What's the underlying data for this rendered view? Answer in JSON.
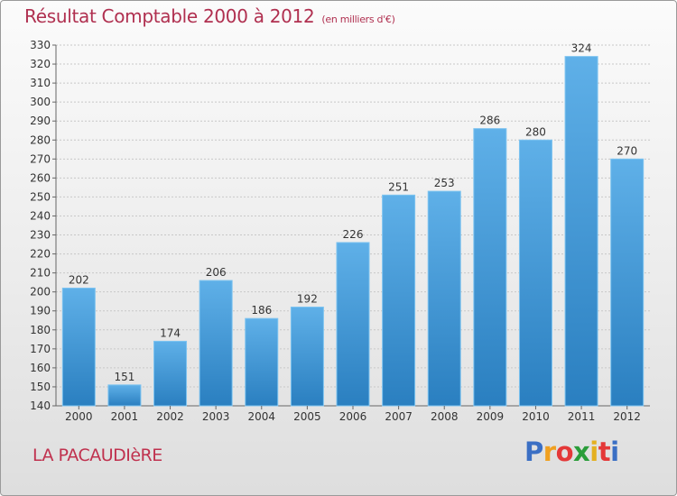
{
  "header": {
    "title": "Résultat Comptable 2000 à 2012",
    "subtitle": "(en milliers d'€)"
  },
  "footer": {
    "commune": "LA PACAUDIèRE",
    "logo_letters": [
      "P",
      "r",
      "o",
      "x",
      "i",
      "t",
      "i"
    ],
    "logo_colors": [
      "#3b6fc4",
      "#f0a020",
      "#e43838",
      "#2a9d3a",
      "#e4b020",
      "#e43838",
      "#3b6fc4"
    ]
  },
  "chart_data": {
    "type": "bar",
    "title": "Résultat Comptable 2000 à 2012",
    "subtitle": "(en milliers d'€)",
    "xlabel": "",
    "ylabel": "",
    "categories": [
      "2000",
      "2001",
      "2002",
      "2003",
      "2004",
      "2005",
      "2006",
      "2007",
      "2008",
      "2009",
      "2010",
      "2011",
      "2012"
    ],
    "values": [
      202,
      151,
      174,
      206,
      186,
      192,
      226,
      251,
      253,
      286,
      280,
      324,
      270
    ],
    "ylim": [
      140,
      330
    ],
    "yticks": [
      140,
      150,
      160,
      170,
      180,
      190,
      200,
      210,
      220,
      230,
      240,
      250,
      260,
      270,
      280,
      290,
      300,
      310,
      320,
      330
    ],
    "grid": true,
    "bar_color_top": "#5fb0e8",
    "bar_color_bottom": "#2a7fc0"
  }
}
